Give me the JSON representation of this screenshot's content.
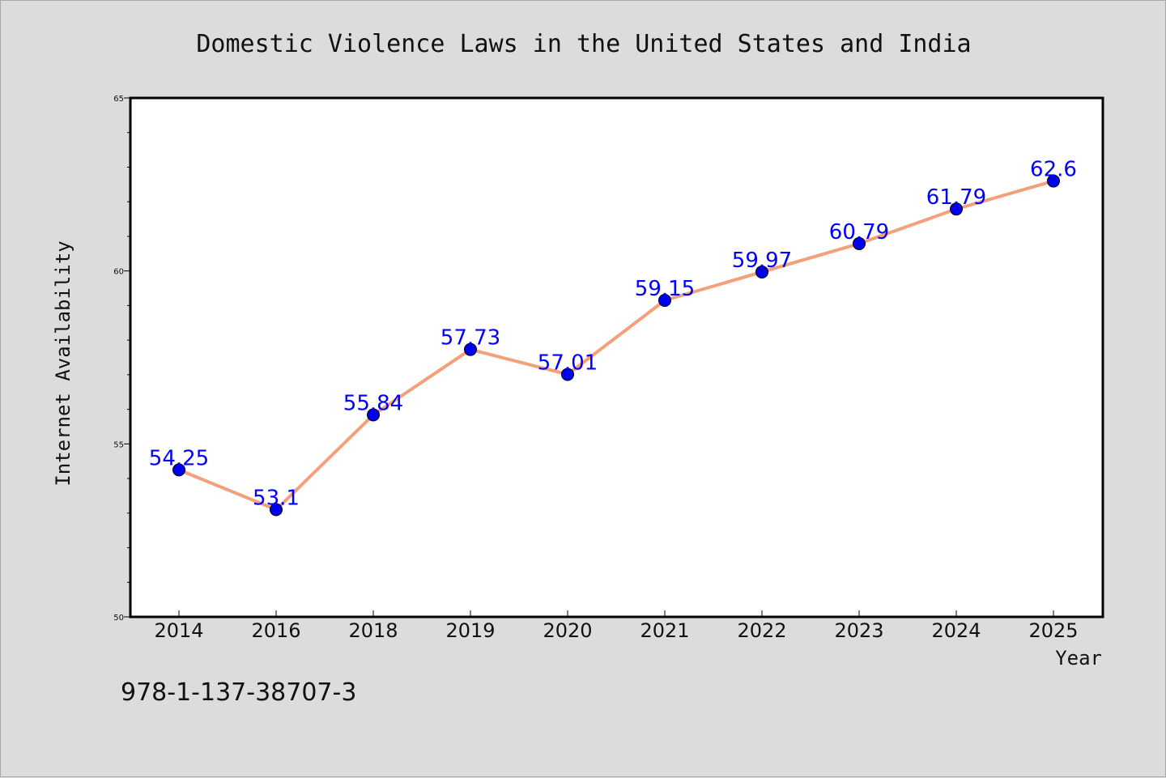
{
  "chart_data": {
    "type": "line",
    "title": "Domestic Violence Laws in the United States and India",
    "xlabel": "Year",
    "ylabel": "Internet Availability",
    "categories": [
      "2014",
      "2016",
      "2018",
      "2019",
      "2020",
      "2021",
      "2022",
      "2023",
      "2024",
      "2025"
    ],
    "series": [
      {
        "values": [
          54.25,
          53.1,
          55.84,
          57.73,
          57.01,
          59.15,
          59.97,
          60.79,
          61.79,
          62.6
        ],
        "data_labels": [
          "54.25",
          "53.1",
          "55.84",
          "57.73",
          "57.01",
          "59.15",
          "59.97",
          "60.79",
          "61.79",
          "62.6"
        ],
        "line_color": "#f4a07a",
        "marker_color": "#0000ee",
        "label_color": "#0000ff"
      }
    ],
    "ylim": [
      50,
      65
    ],
    "yticks": [
      "50",
      "55",
      "60",
      "65"
    ],
    "ymajor_step": 5,
    "yminor_step": 1,
    "grid": false,
    "legend": "none"
  },
  "footer": {
    "text": "978-1-137-38707-3"
  },
  "colors": {
    "background": "#dcdcdc",
    "plot_area": "#ffffff",
    "axes": "#000000"
  }
}
